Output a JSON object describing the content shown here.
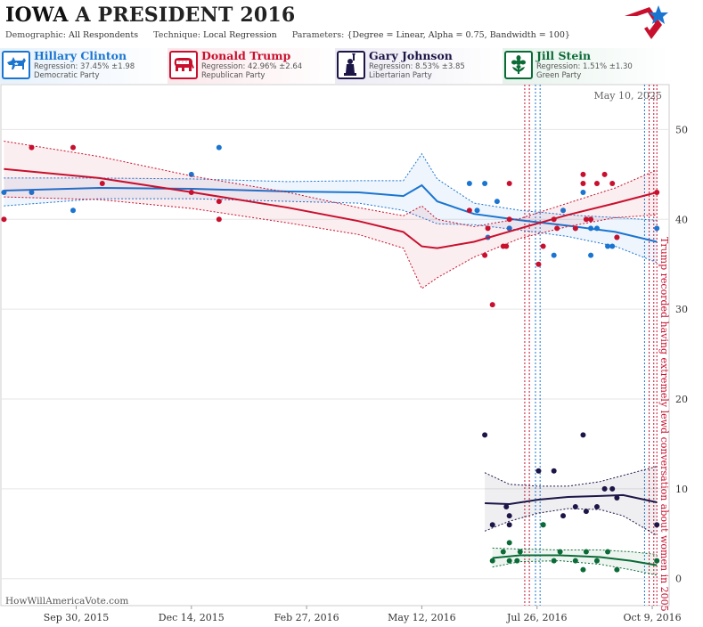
{
  "header": {
    "state": "IOWA",
    "race": "A PRESIDENT 2016",
    "demographic_label": "Demographic:",
    "demographic_value": "All Respondents",
    "technique_label": "Technique:",
    "technique_value": "Local Regression",
    "parameters_label": "Parameters:",
    "parameters_value": "{Degree = Linear, Alpha = 0.75, Bandwidth = 100}"
  },
  "candidates": [
    {
      "name": "Hillary Clinton",
      "regression": "Regression: 37.45% ±1.98",
      "party": "Democratic Party",
      "color": "#1a75d1",
      "bg": "#e6f1fb",
      "icon": "donkey-icon"
    },
    {
      "name": "Donald Trump",
      "regression": "Regression: 42.96% ±2.64",
      "party": "Republican Party",
      "color": "#c8102e",
      "bg": "#fbe7ea",
      "icon": "elephant-icon"
    },
    {
      "name": "Gary Johnson",
      "regression": "Regression: 8.53% ±3.85",
      "party": "Libertarian Party",
      "color": "#1c1647",
      "bg": "#eceaf3",
      "icon": "liberty-statue-icon"
    },
    {
      "name": "Jill Stein",
      "regression": "Regression: 1.51% ±1.30",
      "party": "Green Party",
      "color": "#0b6b36",
      "bg": "#e6f3ec",
      "icon": "flower-icon"
    }
  ],
  "chart_data": {
    "type": "scatter",
    "date_stamp": "May 10, 2025",
    "watermark": "HowWillAmericaVote.com",
    "annotation": "Trump recorded having extremely lewd conversation about women in 2005",
    "x_tick_labels": [
      "Sep 30, 2015",
      "Dec 14, 2015",
      "Feb 27, 2016",
      "May 12, 2016",
      "Jul 26, 2016",
      "Oct 9, 2016"
    ],
    "x_tick_dates": [
      "2015-09-30",
      "2015-12-14",
      "2016-02-27",
      "2016-05-12",
      "2016-07-26",
      "2016-10-09"
    ],
    "xlim": [
      "2015-08-12",
      "2016-10-20"
    ],
    "ylim": [
      -3,
      55
    ],
    "y_ticks": [
      0,
      10,
      20,
      30,
      40,
      50
    ],
    "grid": true,
    "event_lines": [
      {
        "date": "2016-07-18",
        "color": "#c8102e"
      },
      {
        "date": "2016-07-21",
        "color": "#c8102e"
      },
      {
        "date": "2016-07-25",
        "color": "#1a75d1"
      },
      {
        "date": "2016-07-28",
        "color": "#1a75d1"
      },
      {
        "date": "2016-10-04",
        "color": "#1a75d1"
      },
      {
        "date": "2016-10-07",
        "color": "#c8102e"
      },
      {
        "date": "2016-10-10",
        "color": "#c8102e"
      },
      {
        "date": "2016-10-12",
        "color": "#c8102e"
      }
    ],
    "series": [
      {
        "name": "Hillary Clinton",
        "color": "#1a75d1",
        "points": [
          [
            "2015-08-14",
            43
          ],
          [
            "2015-09-01",
            43
          ],
          [
            "2015-09-28",
            41
          ],
          [
            "2015-12-14",
            45
          ],
          [
            "2016-01-01",
            48
          ],
          [
            "2016-06-12",
            44
          ],
          [
            "2016-06-17",
            41
          ],
          [
            "2016-06-22",
            44
          ],
          [
            "2016-06-24",
            38
          ],
          [
            "2016-06-30",
            42
          ],
          [
            "2016-07-08",
            39
          ],
          [
            "2016-07-08",
            39
          ],
          [
            "2016-08-06",
            36
          ],
          [
            "2016-08-12",
            41
          ],
          [
            "2016-08-20",
            39
          ],
          [
            "2016-08-25",
            43
          ],
          [
            "2016-08-30",
            36
          ],
          [
            "2016-08-30",
            39
          ],
          [
            "2016-09-03",
            39
          ],
          [
            "2016-09-10",
            37
          ],
          [
            "2016-09-13",
            37
          ],
          [
            "2016-09-16",
            38
          ],
          [
            "2016-10-12",
            39
          ]
        ],
        "fit": [
          [
            "2015-08-14",
            43.2
          ],
          [
            "2015-10-15",
            43.5
          ],
          [
            "2015-12-15",
            43.4
          ],
          [
            "2016-02-15",
            43.1
          ],
          [
            "2016-04-01",
            43.0
          ],
          [
            "2016-04-30",
            42.6
          ],
          [
            "2016-05-12",
            43.8
          ],
          [
            "2016-05-22",
            42.0
          ],
          [
            "2016-06-15",
            40.6
          ],
          [
            "2016-07-15",
            39.9
          ],
          [
            "2016-08-15",
            39.3
          ],
          [
            "2016-09-15",
            38.6
          ],
          [
            "2016-10-12",
            37.5
          ]
        ],
        "upper": [
          [
            "2015-08-14",
            44.6
          ],
          [
            "2015-10-15",
            44.6
          ],
          [
            "2015-12-15",
            44.5
          ],
          [
            "2016-02-15",
            44.2
          ],
          [
            "2016-04-01",
            44.3
          ],
          [
            "2016-04-30",
            44.3
          ],
          [
            "2016-05-12",
            47.3
          ],
          [
            "2016-05-22",
            44.5
          ],
          [
            "2016-06-15",
            41.8
          ],
          [
            "2016-07-15",
            41.0
          ],
          [
            "2016-08-15",
            40.5
          ],
          [
            "2016-09-15",
            40.2
          ],
          [
            "2016-10-12",
            39.9
          ]
        ],
        "lower": [
          [
            "2015-08-14",
            41.5
          ],
          [
            "2015-10-15",
            42.3
          ],
          [
            "2015-12-15",
            42.3
          ],
          [
            "2016-02-15",
            42.0
          ],
          [
            "2016-04-01",
            41.8
          ],
          [
            "2016-04-30",
            41.0
          ],
          [
            "2016-05-12",
            40.2
          ],
          [
            "2016-05-22",
            39.5
          ],
          [
            "2016-06-15",
            39.4
          ],
          [
            "2016-07-15",
            38.8
          ],
          [
            "2016-08-15",
            38.1
          ],
          [
            "2016-09-15",
            37.0
          ],
          [
            "2016-10-12",
            35.2
          ]
        ]
      },
      {
        "name": "Donald Trump",
        "color": "#c8102e",
        "points": [
          [
            "2015-08-14",
            40
          ],
          [
            "2015-09-01",
            48
          ],
          [
            "2015-09-28",
            48
          ],
          [
            "2015-10-17",
            44
          ],
          [
            "2015-12-14",
            43
          ],
          [
            "2016-01-01",
            40
          ],
          [
            "2016-01-01",
            42
          ],
          [
            "2016-06-12",
            41
          ],
          [
            "2016-06-22",
            36
          ],
          [
            "2016-06-24",
            39
          ],
          [
            "2016-06-27",
            30.5
          ],
          [
            "2016-07-04",
            37
          ],
          [
            "2016-07-06",
            37
          ],
          [
            "2016-07-08",
            44
          ],
          [
            "2016-07-08",
            40
          ],
          [
            "2016-07-27",
            35
          ],
          [
            "2016-07-30",
            37
          ],
          [
            "2016-08-06",
            40
          ],
          [
            "2016-08-08",
            39
          ],
          [
            "2016-08-20",
            39
          ],
          [
            "2016-08-25",
            45
          ],
          [
            "2016-08-25",
            44
          ],
          [
            "2016-08-27",
            40
          ],
          [
            "2016-08-30",
            40
          ],
          [
            "2016-09-03",
            44
          ],
          [
            "2016-09-08",
            45
          ],
          [
            "2016-09-13",
            44
          ],
          [
            "2016-09-16",
            38
          ],
          [
            "2016-10-12",
            43
          ]
        ],
        "fit": [
          [
            "2015-08-14",
            45.6
          ],
          [
            "2015-10-15",
            44.6
          ],
          [
            "2015-12-15",
            43.0
          ],
          [
            "2016-02-15",
            41.3
          ],
          [
            "2016-04-01",
            39.8
          ],
          [
            "2016-04-30",
            38.6
          ],
          [
            "2016-05-12",
            37.0
          ],
          [
            "2016-05-22",
            36.8
          ],
          [
            "2016-06-15",
            37.5
          ],
          [
            "2016-07-15",
            39.0
          ],
          [
            "2016-08-15",
            40.5
          ],
          [
            "2016-09-15",
            41.8
          ],
          [
            "2016-10-12",
            43.0
          ]
        ],
        "upper": [
          [
            "2015-08-14",
            48.7
          ],
          [
            "2015-10-15",
            47.0
          ],
          [
            "2015-12-15",
            44.8
          ],
          [
            "2016-02-15",
            43.0
          ],
          [
            "2016-04-01",
            41.3
          ],
          [
            "2016-04-30",
            40.4
          ],
          [
            "2016-05-12",
            41.5
          ],
          [
            "2016-05-22",
            40.0
          ],
          [
            "2016-06-15",
            39.2
          ],
          [
            "2016-07-15",
            40.1
          ],
          [
            "2016-08-15",
            41.8
          ],
          [
            "2016-09-15",
            43.5
          ],
          [
            "2016-10-12",
            45.5
          ]
        ],
        "lower": [
          [
            "2015-08-14",
            42.5
          ],
          [
            "2015-10-15",
            42.2
          ],
          [
            "2015-12-15",
            41.2
          ],
          [
            "2016-02-15",
            39.6
          ],
          [
            "2016-04-01",
            38.3
          ],
          [
            "2016-04-30",
            36.8
          ],
          [
            "2016-05-12",
            32.3
          ],
          [
            "2016-05-22",
            33.5
          ],
          [
            "2016-06-15",
            35.8
          ],
          [
            "2016-07-15",
            37.9
          ],
          [
            "2016-08-15",
            39.2
          ],
          [
            "2016-09-15",
            40.2
          ],
          [
            "2016-10-12",
            40.5
          ]
        ]
      },
      {
        "name": "Gary Johnson",
        "color": "#1c1647",
        "points": [
          [
            "2016-06-22",
            16
          ],
          [
            "2016-06-27",
            6
          ],
          [
            "2016-07-06",
            8
          ],
          [
            "2016-07-08",
            7
          ],
          [
            "2016-07-08",
            6
          ],
          [
            "2016-07-27",
            12
          ],
          [
            "2016-07-30",
            6
          ],
          [
            "2016-08-06",
            12
          ],
          [
            "2016-08-12",
            7
          ],
          [
            "2016-08-20",
            8
          ],
          [
            "2016-08-25",
            16
          ],
          [
            "2016-08-27",
            7.5
          ],
          [
            "2016-09-03",
            8
          ],
          [
            "2016-09-08",
            10
          ],
          [
            "2016-09-13",
            10
          ],
          [
            "2016-09-16",
            9
          ],
          [
            "2016-10-12",
            6
          ]
        ],
        "fit": [
          [
            "2016-06-22",
            8.4
          ],
          [
            "2016-07-08",
            8.3
          ],
          [
            "2016-07-27",
            8.8
          ],
          [
            "2016-08-15",
            9.1
          ],
          [
            "2016-09-05",
            9.2
          ],
          [
            "2016-09-20",
            9.3
          ],
          [
            "2016-10-12",
            8.5
          ]
        ],
        "upper": [
          [
            "2016-06-22",
            11.8
          ],
          [
            "2016-07-08",
            10.5
          ],
          [
            "2016-07-27",
            10.3
          ],
          [
            "2016-08-15",
            10.3
          ],
          [
            "2016-09-05",
            10.8
          ],
          [
            "2016-09-20",
            11.5
          ],
          [
            "2016-10-12",
            12.5
          ]
        ],
        "lower": [
          [
            "2016-06-22",
            5.3
          ],
          [
            "2016-07-08",
            6.4
          ],
          [
            "2016-07-27",
            7.3
          ],
          [
            "2016-08-15",
            7.8
          ],
          [
            "2016-09-05",
            7.7
          ],
          [
            "2016-09-20",
            7.0
          ],
          [
            "2016-10-12",
            4.8
          ]
        ]
      },
      {
        "name": "Jill Stein",
        "color": "#0b6b36",
        "points": [
          [
            "2016-06-27",
            2
          ],
          [
            "2016-07-04",
            3
          ],
          [
            "2016-07-08",
            2
          ],
          [
            "2016-07-08",
            4
          ],
          [
            "2016-07-13",
            2
          ],
          [
            "2016-07-15",
            3
          ],
          [
            "2016-07-30",
            6
          ],
          [
            "2016-08-06",
            2
          ],
          [
            "2016-08-10",
            3
          ],
          [
            "2016-08-20",
            2
          ],
          [
            "2016-08-25",
            1
          ],
          [
            "2016-08-27",
            3
          ],
          [
            "2016-09-03",
            2
          ],
          [
            "2016-09-10",
            3
          ],
          [
            "2016-09-16",
            1
          ],
          [
            "2016-10-12",
            2
          ]
        ],
        "fit": [
          [
            "2016-06-27",
            2.3
          ],
          [
            "2016-07-15",
            2.6
          ],
          [
            "2016-08-10",
            2.6
          ],
          [
            "2016-09-05",
            2.4
          ],
          [
            "2016-09-25",
            2.0
          ],
          [
            "2016-10-12",
            1.5
          ]
        ],
        "upper": [
          [
            "2016-06-27",
            3.4
          ],
          [
            "2016-07-15",
            3.3
          ],
          [
            "2016-08-10",
            3.2
          ],
          [
            "2016-09-05",
            3.2
          ],
          [
            "2016-09-25",
            3.0
          ],
          [
            "2016-10-12",
            2.7
          ]
        ],
        "lower": [
          [
            "2016-06-27",
            1.3
          ],
          [
            "2016-07-15",
            1.9
          ],
          [
            "2016-08-10",
            2.0
          ],
          [
            "2016-09-05",
            1.6
          ],
          [
            "2016-09-25",
            1.0
          ],
          [
            "2016-10-12",
            0.4
          ]
        ]
      }
    ]
  }
}
